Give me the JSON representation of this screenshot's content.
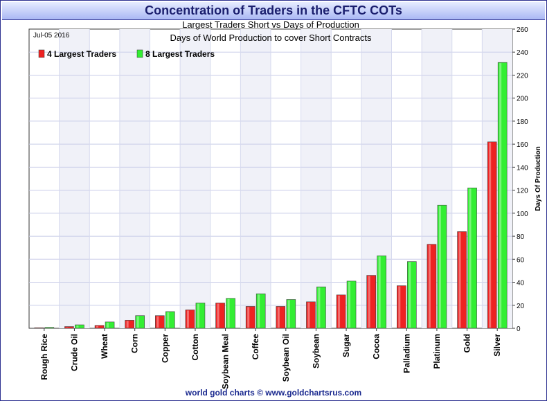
{
  "header": {
    "title": "Concentration of Traders in the CFTC COTs"
  },
  "footer": {
    "credit": "world gold charts © www.goldchartsrus.com"
  },
  "chart_data": {
    "type": "bar",
    "title": "Largest Traders Short vs Days of Production",
    "subtitle": "Days of World Production to cover Short Contracts",
    "date_label": "Jul-05  2016",
    "ylabel": "Days Of Production",
    "ylim": [
      0,
      260
    ],
    "yticks": [
      0,
      20,
      40,
      60,
      80,
      100,
      120,
      140,
      160,
      180,
      200,
      220,
      240,
      260
    ],
    "categories": [
      "Rough Rice",
      "Crude Oil",
      "Wheat",
      "Corn",
      "Copper",
      "Cotton",
      "Soybean Meal",
      "Coffee",
      "Soybean Oil",
      "Soybean",
      "Sugar",
      "Cocoa",
      "Palladium",
      "Platinum",
      "Gold",
      "Silver"
    ],
    "series": [
      {
        "name": "4 Largest Traders",
        "color": "#ee2222",
        "values": [
          0.5,
          1.5,
          2.5,
          7,
          11,
          16,
          22,
          19,
          19,
          23,
          29,
          46,
          37,
          73,
          84,
          162
        ]
      },
      {
        "name": "8 Largest Traders",
        "color": "#33ee33",
        "values": [
          0.8,
          3,
          5.5,
          11,
          14.5,
          22,
          26,
          30,
          25,
          36,
          41,
          63,
          58,
          107,
          122,
          231
        ]
      }
    ],
    "legend_position": "top-left",
    "grid": true
  }
}
